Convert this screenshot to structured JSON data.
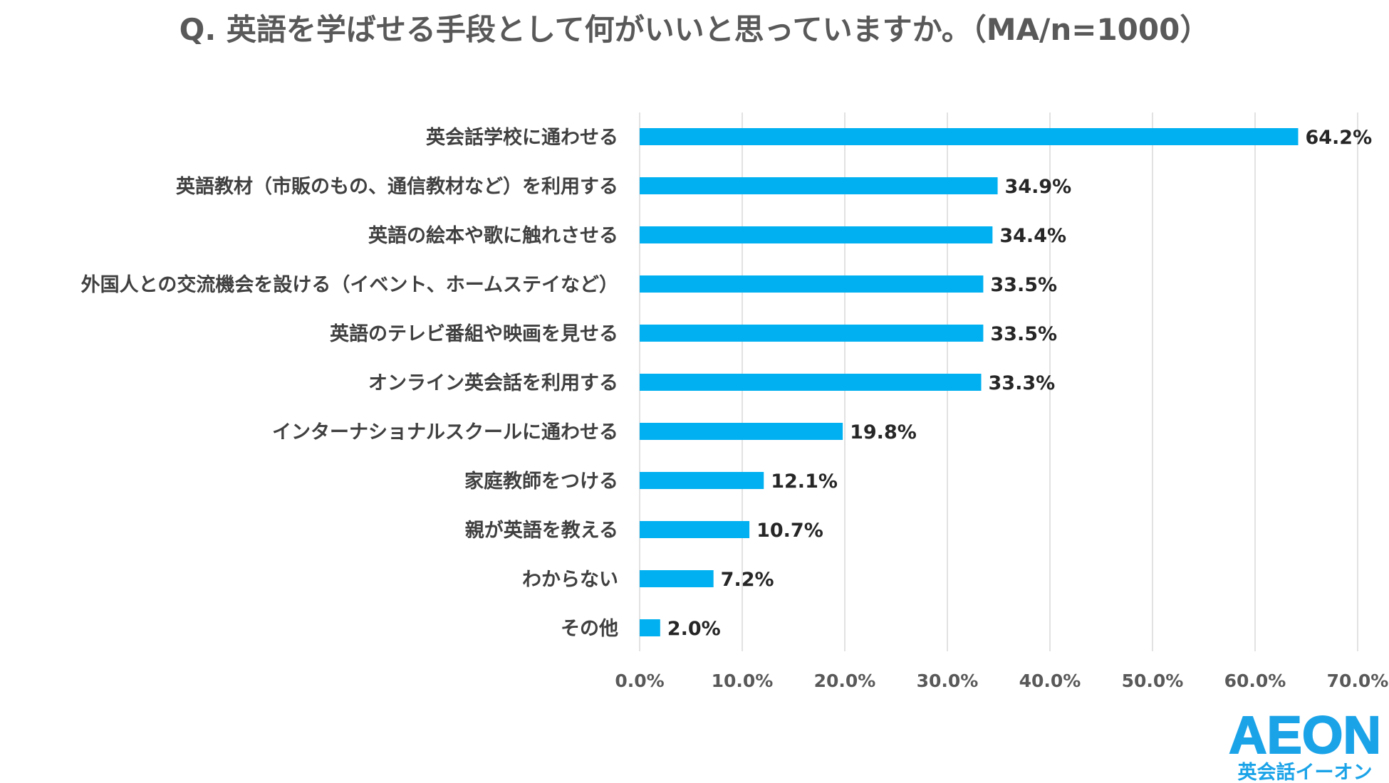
{
  "chart_data": {
    "type": "bar",
    "orientation": "horizontal",
    "title": "Q. 英語を学ばせる手段として何がいいと思っていますか。（MA/n=1000）",
    "categories": [
      "英会話学校に通わせる",
      "英語教材（市販のもの、通信教材など）を利用する",
      "英語の絵本や歌に触れさせる",
      "外国人との交流機会を設ける（イベント、ホームステイなど）",
      "英語のテレビ番組や映画を見せる",
      "オンライン英会話を利用する",
      "インターナショナルスクールに通わせる",
      "家庭教師をつける",
      "親が英語を教える",
      "わからない",
      "その他"
    ],
    "values": [
      64.2,
      34.9,
      34.4,
      33.5,
      33.5,
      33.3,
      19.8,
      12.1,
      10.7,
      7.2,
      2.0
    ],
    "value_labels": [
      "64.2%",
      "34.9%",
      "34.4%",
      "33.5%",
      "33.5%",
      "33.3%",
      "19.8%",
      "12.1%",
      "10.7%",
      "7.2%",
      "2.0%"
    ],
    "xlim": [
      0,
      70
    ],
    "xticks": [
      0,
      10,
      20,
      30,
      40,
      50,
      60,
      70
    ],
    "xtick_labels": [
      "0.0%",
      "10.0%",
      "20.0%",
      "30.0%",
      "40.0%",
      "50.0%",
      "60.0%",
      "70.0%"
    ],
    "xlabel": "",
    "ylabel": "",
    "grid": true,
    "bar_color": "#00B0F0"
  },
  "brand": {
    "logo": "AEON",
    "subtitle": "英会話イーオン",
    "color": "#1BA3E8"
  }
}
